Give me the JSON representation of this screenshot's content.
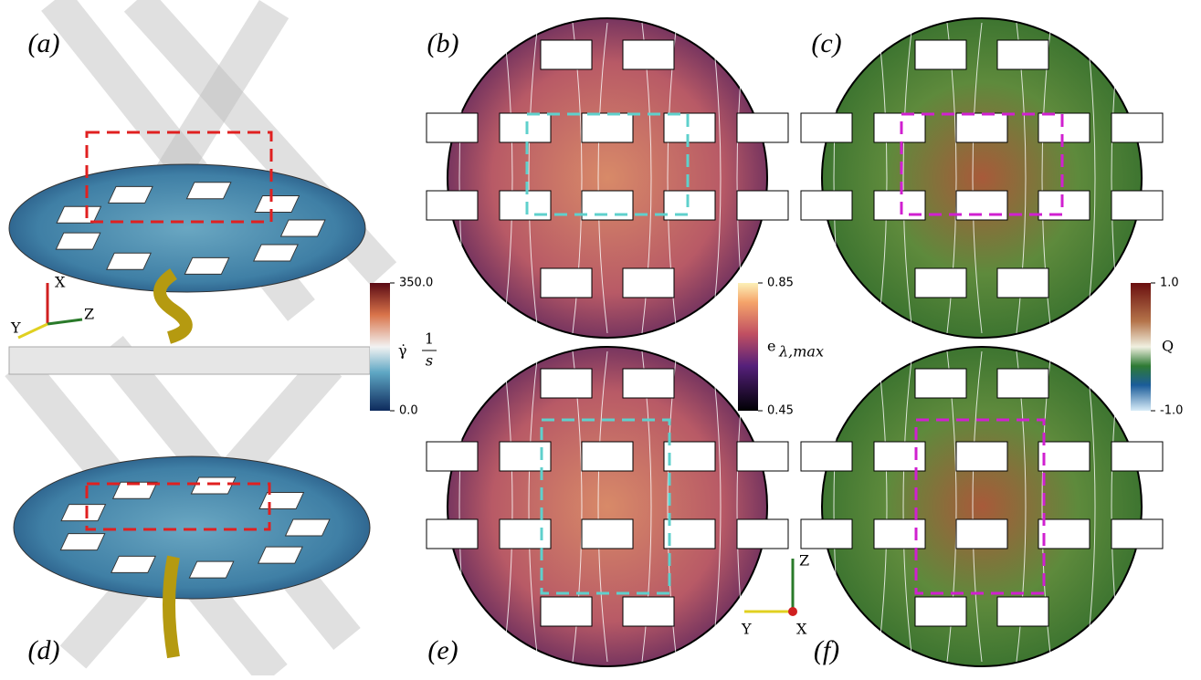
{
  "panels": [
    {
      "label": "(a)"
    },
    {
      "label": "(b)"
    },
    {
      "label": "(c)"
    },
    {
      "label": "(d)"
    },
    {
      "label": "(e)"
    },
    {
      "label": "(f)"
    }
  ],
  "colorbars": [
    {
      "symbol": "γ̇",
      "numerator": "1",
      "denominator": "s",
      "ticks": [
        {
          "value": 350,
          "label": "350.0"
        },
        {
          "value": 0,
          "label": "0.0"
        }
      ]
    },
    {
      "symbol": "e",
      "subscript": "λ,max",
      "ticks": [
        0.85,
        0.45
      ]
    },
    {
      "symbol": "Q",
      "ticks": [
        {
          "value": 1,
          "label": "1.0"
        },
        {
          "value": -1,
          "label": "-1.0"
        }
      ]
    }
  ],
  "axes_top": {
    "x": "X",
    "y": "Y",
    "z": "Z"
  },
  "axes_bottom": {
    "z": "Z",
    "y": "Y",
    "x": "X"
  }
}
